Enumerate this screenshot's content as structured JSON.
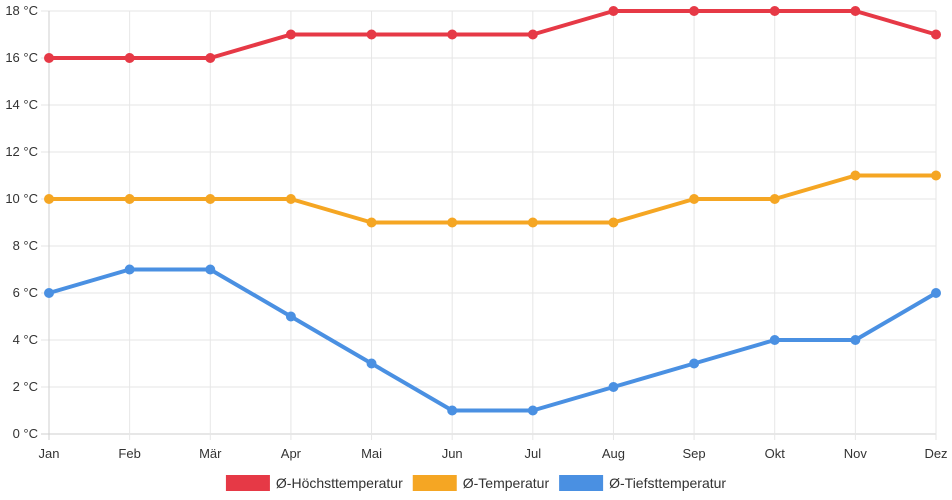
{
  "chart_data": {
    "type": "line",
    "title": "",
    "xlabel": "",
    "ylabel": "",
    "y_unit": "°C",
    "categories": [
      "Jan",
      "Feb",
      "Mär",
      "Apr",
      "Mai",
      "Jun",
      "Jul",
      "Aug",
      "Sep",
      "Okt",
      "Nov",
      "Dez"
    ],
    "ylim": [
      0,
      18
    ],
    "yticks": [
      0,
      2,
      4,
      6,
      8,
      10,
      12,
      14,
      16,
      18
    ],
    "ytick_labels": [
      "0 °C",
      "2 °C",
      "4 °C",
      "6 °C",
      "8 °C",
      "10 °C",
      "12 °C",
      "14 °C",
      "16 °C",
      "18 °C"
    ],
    "grid": true,
    "legend_position": "bottom",
    "series": [
      {
        "name": "Ø-Höchsttemperatur",
        "color": "#e63946",
        "values": [
          16,
          16,
          16,
          17,
          17,
          17,
          17,
          18,
          18,
          18,
          18,
          17
        ]
      },
      {
        "name": "Ø-Temperatur",
        "color": "#f5a623",
        "values": [
          10,
          10,
          10,
          10,
          9,
          9,
          9,
          9,
          10,
          10,
          11,
          11
        ]
      },
      {
        "name": "Ø-Tiefsttemperatur",
        "color": "#4a90e2",
        "values": [
          6,
          7,
          7,
          5,
          3,
          1,
          1,
          2,
          3,
          4,
          4,
          6
        ]
      }
    ]
  }
}
